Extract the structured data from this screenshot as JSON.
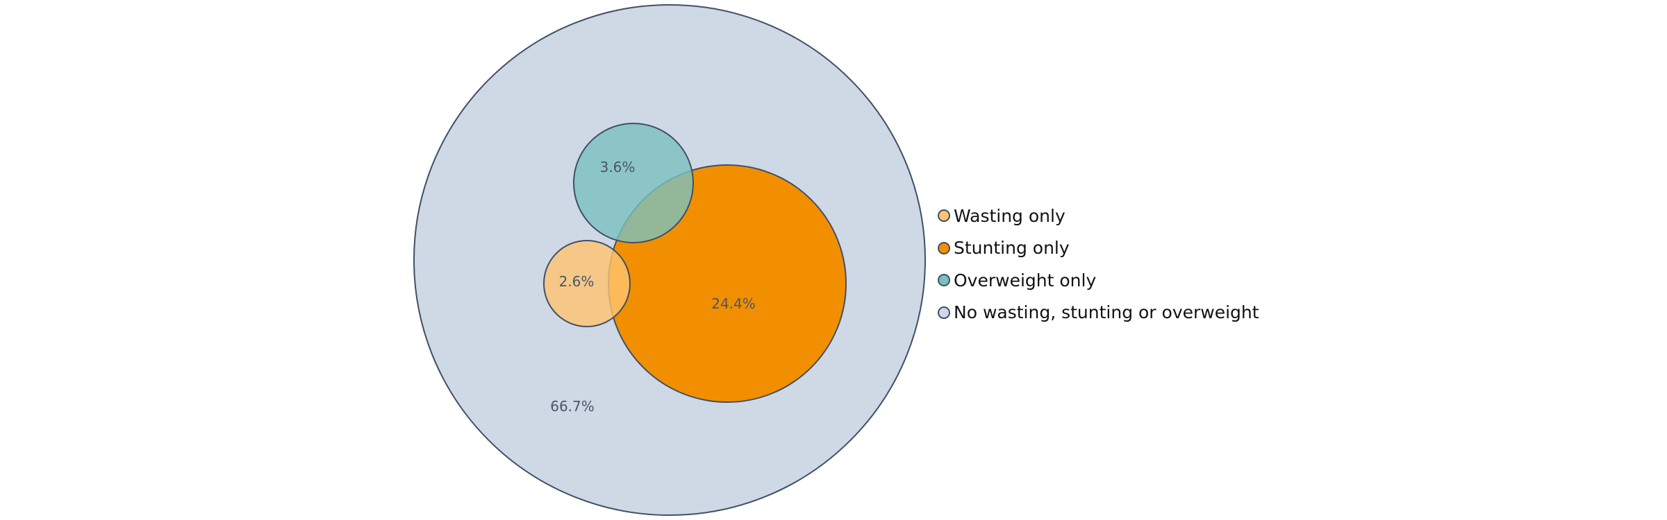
{
  "venn": {
    "circles": [
      {
        "key": "none",
        "label": "66.7%",
        "fill": "#cfd8e5",
        "opacity": 1
      },
      {
        "key": "stunting",
        "label": "24.4%",
        "fill": "#f28f00",
        "opacity": 1
      },
      {
        "key": "overweight",
        "label": "3.6%",
        "fill": "#79c0bf",
        "opacity": 0.8
      },
      {
        "key": "wasting",
        "label": "2.6%",
        "fill": "#fec471",
        "opacity": 0.8
      }
    ],
    "stroke": "#3f4f66"
  },
  "legend": {
    "items": [
      {
        "label": "Wasting only",
        "color": "#fec471"
      },
      {
        "label": "Stunting only",
        "color": "#f28f00"
      },
      {
        "label": "Overweight only",
        "color": "#79c0bf"
      },
      {
        "label": "No wasting, stunting or overweight",
        "color": "#cfd8e5"
      }
    ]
  }
}
